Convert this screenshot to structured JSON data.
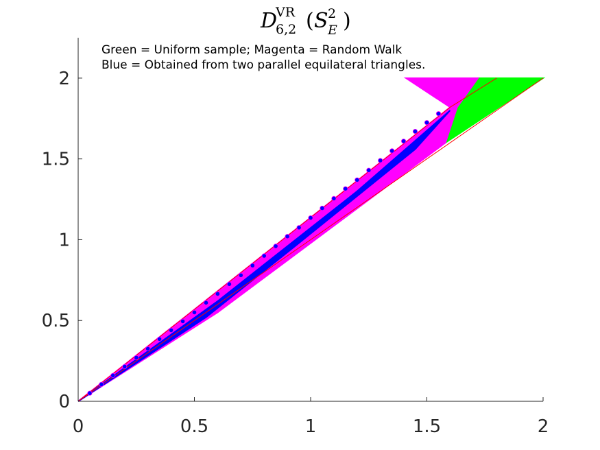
{
  "chart_data": {
    "type": "scatter",
    "title": {
      "base": "D",
      "superscript": "VR",
      "subscript": "6,2",
      "open_paren": "(",
      "arg_base": "S",
      "arg_superscript": "2",
      "arg_subscript": "E",
      "close_paren": ")"
    },
    "xlabel": "",
    "ylabel": "",
    "xlim": [
      0,
      2
    ],
    "ylim": [
      0,
      2.25
    ],
    "x_ticks": [
      0,
      0.5,
      1,
      1.5,
      2
    ],
    "x_tick_labels": [
      "0",
      "0.5",
      "1",
      "1.5",
      "2"
    ],
    "y_ticks": [
      0,
      0.5,
      1,
      1.5,
      2
    ],
    "y_tick_labels": [
      "0",
      "0.5",
      "1",
      "1.5",
      "2"
    ],
    "grid": false,
    "legend": "none",
    "annotations": [
      "Green = Uniform sample; Magenta = Random Walk",
      "Blue = Obtained from two parallel equilateral triangles."
    ],
    "regions": [
      {
        "series": "Uniform sample",
        "color": "#00ff00",
        "polygon": [
          [
            1.63,
            1.82
          ],
          [
            1.72,
            2.0
          ],
          [
            2.0,
            2.0
          ],
          [
            1.58,
            1.6
          ]
        ]
      },
      {
        "series": "Random Walk",
        "color": "#ff00ff",
        "polygon": [
          [
            0,
            0
          ],
          [
            1.6,
            1.82
          ],
          [
            1.41,
            2.0
          ],
          [
            1.72,
            2.0
          ],
          [
            1.63,
            1.82
          ],
          [
            1.58,
            1.6
          ],
          [
            0.6,
            0.55
          ]
        ]
      },
      {
        "series": "Two parallel equilateral triangles",
        "color": "#0000ff",
        "polygon": [
          [
            0,
            0
          ],
          [
            0.6,
            0.62
          ],
          [
            1.2,
            1.3
          ],
          [
            1.6,
            1.8
          ],
          [
            1.45,
            1.56
          ],
          [
            0.95,
            0.98
          ],
          [
            0.55,
            0.52
          ]
        ]
      }
    ],
    "boundary_lines": [
      {
        "color": "#ff0000",
        "points": [
          [
            0,
            0
          ],
          [
            1.6,
            1.82
          ]
        ]
      },
      {
        "color": "#ff0000",
        "points": [
          [
            0,
            0
          ],
          [
            2.0,
            2.0
          ]
        ]
      },
      {
        "color": "#ff0000",
        "points": [
          [
            1.6,
            1.82
          ],
          [
            1.8,
            2.0
          ]
        ]
      }
    ],
    "blue_stripe_points": [
      [
        0.05,
        0.05
      ],
      [
        0.1,
        0.105
      ],
      [
        0.15,
        0.16
      ],
      [
        0.2,
        0.215
      ],
      [
        0.25,
        0.27
      ],
      [
        0.3,
        0.325
      ],
      [
        0.35,
        0.385
      ],
      [
        0.4,
        0.44
      ],
      [
        0.45,
        0.495
      ],
      [
        0.5,
        0.55
      ],
      [
        0.55,
        0.61
      ],
      [
        0.6,
        0.665
      ],
      [
        0.65,
        0.725
      ],
      [
        0.7,
        0.78
      ],
      [
        0.75,
        0.84
      ],
      [
        0.8,
        0.9
      ],
      [
        0.85,
        0.96
      ],
      [
        0.9,
        1.02
      ],
      [
        0.95,
        1.075
      ],
      [
        1.0,
        1.135
      ],
      [
        1.05,
        1.195
      ],
      [
        1.1,
        1.255
      ],
      [
        1.15,
        1.315
      ],
      [
        1.2,
        1.37
      ],
      [
        1.25,
        1.43
      ],
      [
        1.3,
        1.49
      ],
      [
        1.35,
        1.55
      ],
      [
        1.4,
        1.61
      ],
      [
        1.45,
        1.67
      ],
      [
        1.5,
        1.725
      ],
      [
        1.55,
        1.78
      ]
    ]
  }
}
